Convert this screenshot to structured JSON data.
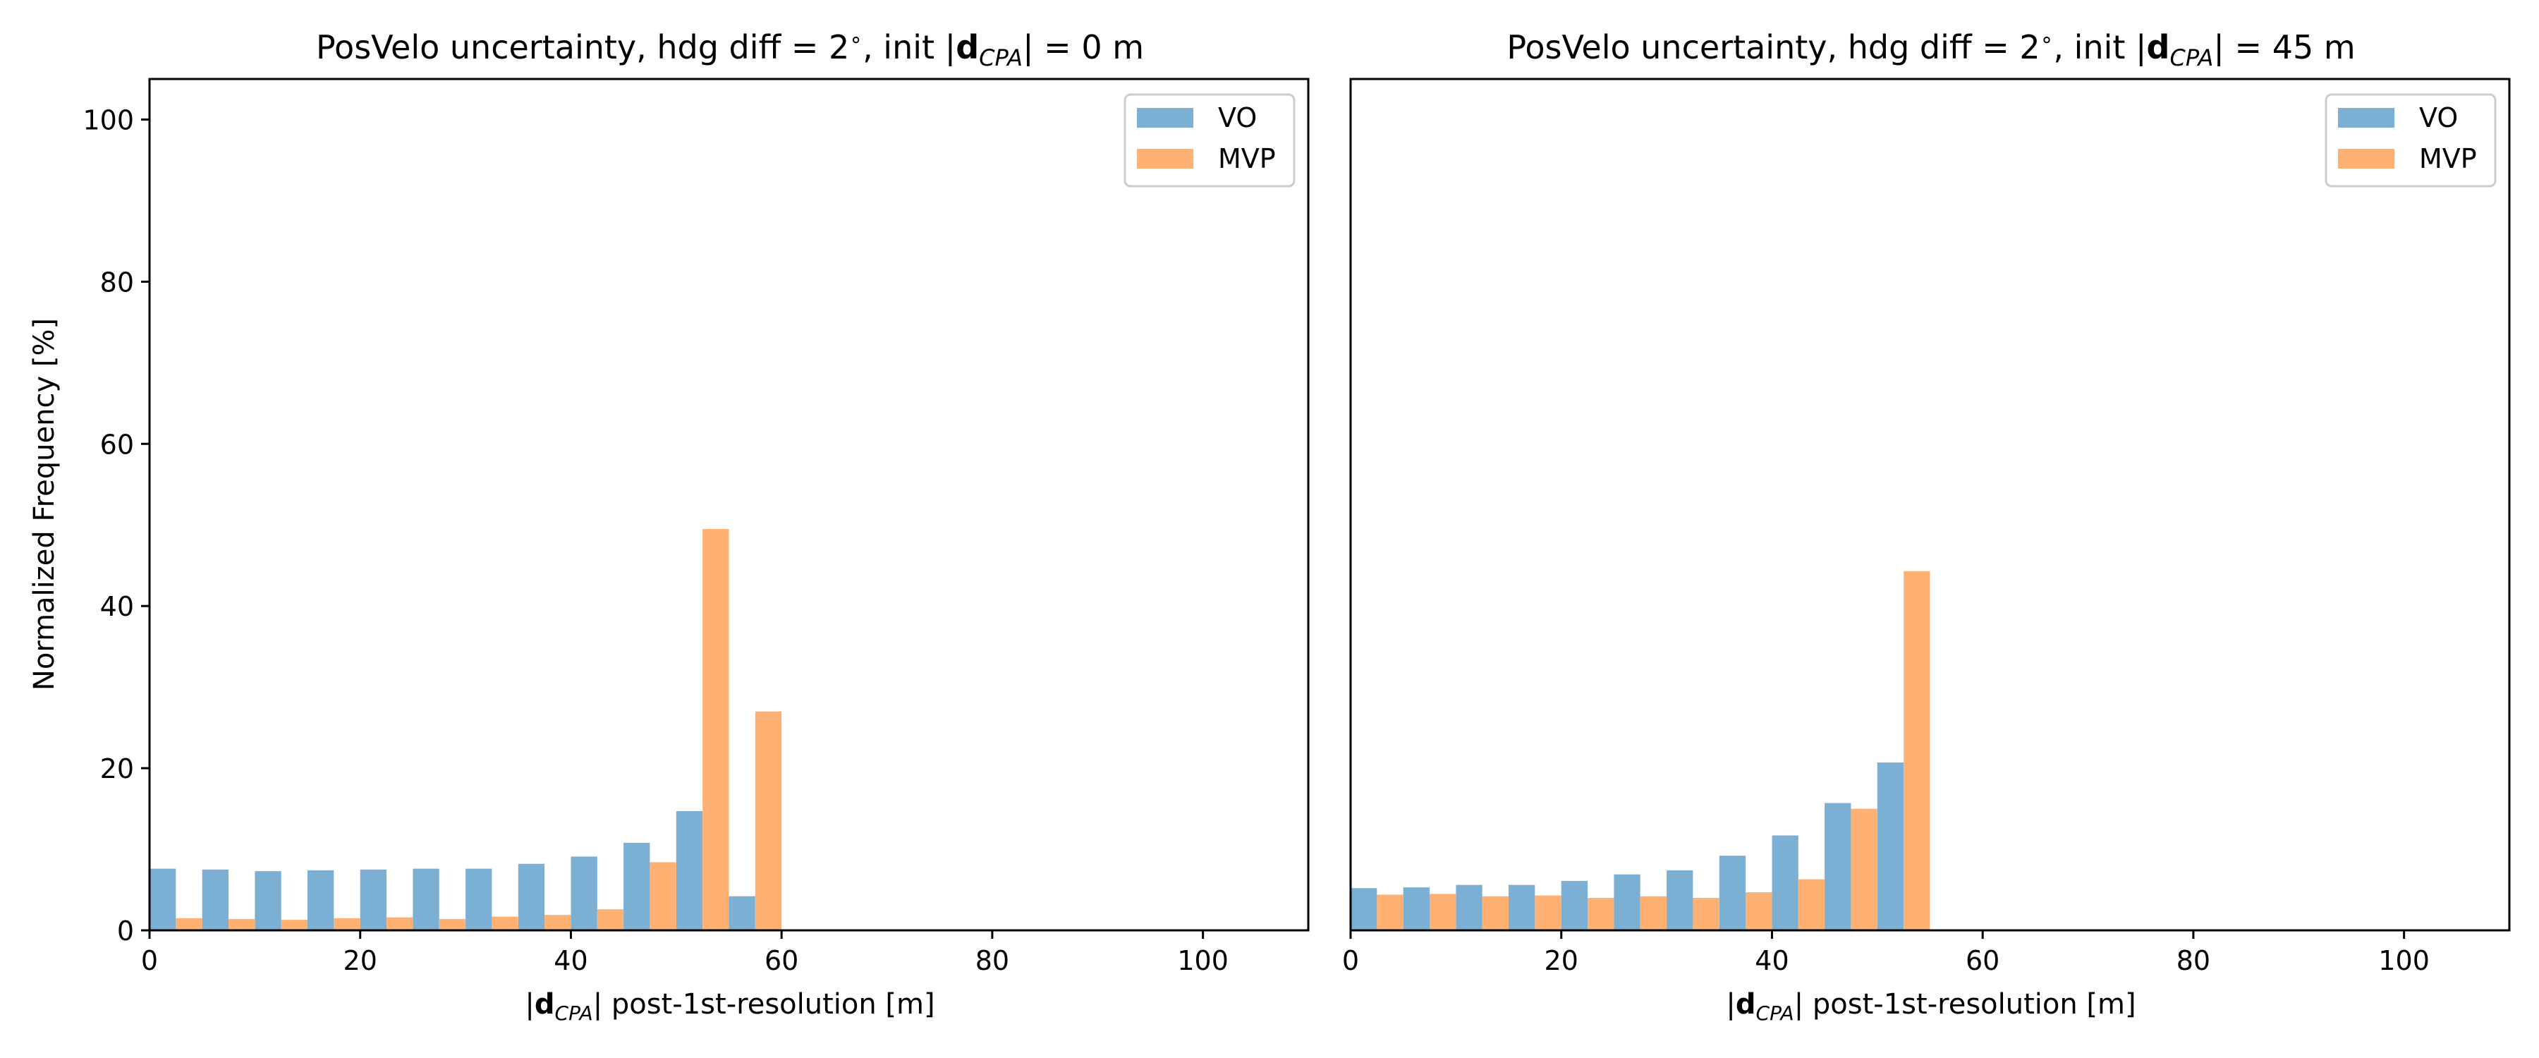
{
  "chart_data": [
    {
      "type": "bar",
      "title": "PosVelo uncertainty, hdg diff = 2∘, init |dCPA| = 0 m",
      "title_parts": {
        "pre": "PosVelo uncertainty, hdg diff = 2",
        "deg": "∘",
        "mid": ", init |",
        "bold": "d",
        "sub": "CPA",
        "post": "| = 0 m"
      },
      "xlabel": "|dCPA| post-1st-resolution [m]",
      "xlabel_parts": {
        "pre": "|",
        "bold": "d",
        "sub": "CPA",
        "post": "| post-1st-resolution [m]"
      },
      "ylabel": "Normalized Frequency [%]",
      "xlim": [
        0,
        110
      ],
      "ylim": [
        0,
        105
      ],
      "xticks": [
        0,
        20,
        40,
        60,
        80,
        100
      ],
      "yticks": [
        0,
        20,
        40,
        60,
        80,
        100
      ],
      "bin_width": 5,
      "bin_centers": [
        2.5,
        7.5,
        12.5,
        17.5,
        22.5,
        27.5,
        32.5,
        37.5,
        42.5,
        47.5,
        52.5,
        57.5
      ],
      "series": [
        {
          "name": "VO",
          "color": "#7bafd4",
          "values": [
            7.6,
            7.5,
            7.3,
            7.4,
            7.5,
            7.6,
            7.6,
            8.2,
            9.1,
            10.8,
            14.7,
            4.2
          ]
        },
        {
          "name": "MVP",
          "color": "#ffb173",
          "values": [
            1.5,
            1.4,
            1.3,
            1.5,
            1.6,
            1.4,
            1.7,
            1.9,
            2.6,
            8.4,
            49.5,
            27.0
          ]
        }
      ],
      "legend": "top-right",
      "grid": false
    },
    {
      "type": "bar",
      "title": "PosVelo uncertainty, hdg diff = 2∘, init |dCPA| = 45 m",
      "title_parts": {
        "pre": "PosVelo uncertainty, hdg diff = 2",
        "deg": "∘",
        "mid": ", init |",
        "bold": "d",
        "sub": "CPA",
        "post": "| = 45 m"
      },
      "xlabel": "|dCPA| post-1st-resolution [m]",
      "xlabel_parts": {
        "pre": "|",
        "bold": "d",
        "sub": "CPA",
        "post": "| post-1st-resolution [m]"
      },
      "xlim": [
        0,
        110
      ],
      "ylim": [
        0,
        105
      ],
      "xticks": [
        0,
        20,
        40,
        60,
        80,
        100
      ],
      "bin_width": 5,
      "bin_centers": [
        2.5,
        7.5,
        12.5,
        17.5,
        22.5,
        27.5,
        32.5,
        37.5,
        42.5,
        47.5,
        52.5
      ],
      "series": [
        {
          "name": "VO",
          "color": "#7bafd4",
          "values": [
            5.2,
            5.3,
            5.6,
            5.6,
            6.1,
            6.9,
            7.4,
            9.2,
            11.7,
            15.7,
            20.7
          ]
        },
        {
          "name": "MVP",
          "color": "#ffb173",
          "values": [
            4.4,
            4.5,
            4.2,
            4.3,
            4.0,
            4.2,
            4.0,
            4.7,
            6.3,
            15.0,
            44.3
          ]
        }
      ],
      "legend": "top-right",
      "grid": false
    }
  ]
}
